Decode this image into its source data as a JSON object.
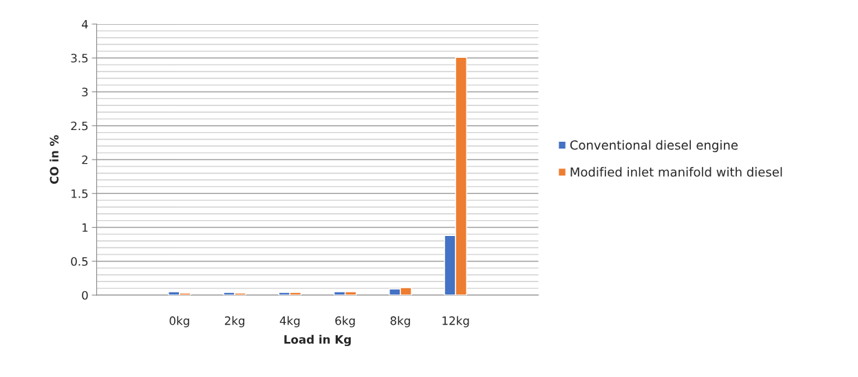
{
  "chart_data": {
    "type": "bar",
    "xlabel": "Load in Kg",
    "ylabel": "CO in %",
    "categories": [
      null,
      "0kg",
      "2kg",
      "4kg",
      "6kg",
      "8kg",
      "12kg",
      null
    ],
    "series": [
      {
        "name": "Conventional diesel engine",
        "color": "#4472c4",
        "values": [
          null,
          0.05,
          0.04,
          0.04,
          0.05,
          0.09,
          0.88,
          null
        ]
      },
      {
        "name": "Modified inlet manifold with diesel",
        "color": "#ed7d31",
        "values": [
          null,
          0.03,
          0.03,
          0.04,
          0.05,
          0.11,
          3.51,
          null
        ]
      }
    ],
    "ylim": [
      0,
      4
    ],
    "yticks": [
      0,
      0.5,
      1,
      1.5,
      2,
      2.5,
      3,
      3.5,
      4
    ],
    "grid": "y",
    "legend": "right"
  }
}
